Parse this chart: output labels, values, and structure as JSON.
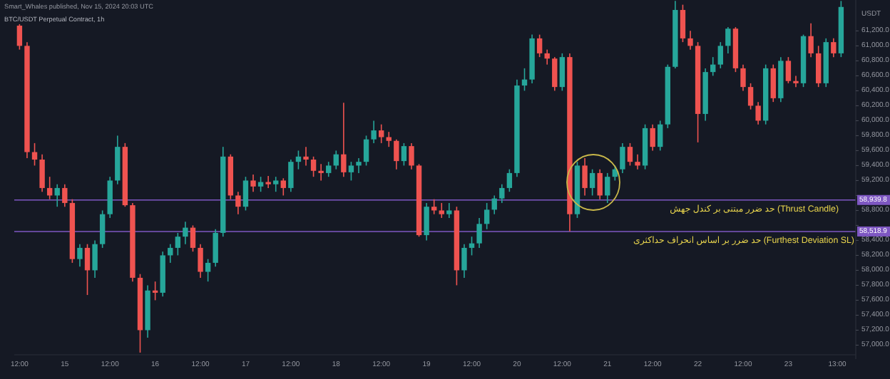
{
  "chart_data": {
    "type": "candlestick",
    "title": "BTC/USDT Perpetual Contract, 1h",
    "subtitle": "Smart_Whales published, Nov 15, 2024 20:03 UTC",
    "ylabel": "USDT",
    "x": [
      "2024-08-14T12:00",
      "2024-08-14T14:00",
      "2024-08-14T16:00",
      "2024-08-14T18:00",
      "2024-08-14T20:00",
      "2024-08-14T22:00",
      "2024-08-15T00:00",
      "2024-08-15T02:00",
      "2024-08-15T04:00",
      "2024-08-15T06:00",
      "2024-08-15T08:00",
      "2024-08-15T10:00",
      "2024-08-15T12:00",
      "2024-08-15T14:00",
      "2024-08-15T16:00",
      "2024-08-15T18:00",
      "2024-08-15T20:00",
      "2024-08-15T22:00",
      "2024-08-16T00:00",
      "2024-08-16T02:00",
      "2024-08-16T04:00",
      "2024-08-16T06:00",
      "2024-08-16T08:00",
      "2024-08-16T10:00",
      "2024-08-16T12:00",
      "2024-08-16T14:00",
      "2024-08-16T16:00",
      "2024-08-16T18:00",
      "2024-08-16T20:00",
      "2024-08-16T22:00",
      "2024-08-17T00:00",
      "2024-08-17T02:00",
      "2024-08-17T04:00",
      "2024-08-17T06:00",
      "2024-08-17T08:00",
      "2024-08-17T10:00",
      "2024-08-17T12:00",
      "2024-08-17T14:00",
      "2024-08-17T16:00",
      "2024-08-17T18:00",
      "2024-08-17T20:00",
      "2024-08-17T22:00",
      "2024-08-18T00:00",
      "2024-08-18T02:00",
      "2024-08-18T04:00",
      "2024-08-18T06:00",
      "2024-08-18T08:00",
      "2024-08-18T10:00",
      "2024-08-18T12:00",
      "2024-08-18T14:00",
      "2024-08-18T16:00",
      "2024-08-18T18:00",
      "2024-08-18T20:00",
      "2024-08-18T22:00",
      "2024-08-19T00:00",
      "2024-08-19T02:00",
      "2024-08-19T04:00",
      "2024-08-19T06:00",
      "2024-08-19T08:00",
      "2024-08-19T10:00",
      "2024-08-19T12:00",
      "2024-08-19T14:00",
      "2024-08-19T16:00",
      "2024-08-19T18:00",
      "2024-08-19T20:00",
      "2024-08-19T22:00",
      "2024-08-20T00:00",
      "2024-08-20T02:00",
      "2024-08-20T04:00",
      "2024-08-20T06:00",
      "2024-08-20T08:00",
      "2024-08-20T10:00",
      "2024-08-20T12:00",
      "2024-08-20T14:00",
      "2024-08-20T16:00",
      "2024-08-20T18:00",
      "2024-08-20T20:00",
      "2024-08-20T22:00",
      "2024-08-21T00:00",
      "2024-08-21T02:00",
      "2024-08-21T04:00",
      "2024-08-21T06:00",
      "2024-08-21T08:00",
      "2024-08-21T10:00",
      "2024-08-21T12:00",
      "2024-08-21T14:00",
      "2024-08-21T16:00",
      "2024-08-21T18:00",
      "2024-08-21T20:00",
      "2024-08-21T22:00",
      "2024-08-22T00:00",
      "2024-08-22T02:00",
      "2024-08-22T04:00",
      "2024-08-22T06:00",
      "2024-08-22T08:00",
      "2024-08-22T10:00",
      "2024-08-22T12:00",
      "2024-08-22T14:00",
      "2024-08-22T16:00",
      "2024-08-22T18:00",
      "2024-08-22T20:00",
      "2024-08-22T22:00",
      "2024-08-23T00:00",
      "2024-08-23T02:00",
      "2024-08-23T04:00",
      "2024-08-23T06:00",
      "2024-08-23T08:00",
      "2024-08-23T10:00",
      "2024-08-23T12:00",
      "2024-08-23T14:00"
    ],
    "ohlc": [
      [
        61270,
        61290,
        60950,
        61000
      ],
      [
        61000,
        61050,
        59500,
        59580
      ],
      [
        59580,
        59700,
        59400,
        59480
      ],
      [
        59480,
        59550,
        59050,
        59100
      ],
      [
        59100,
        59250,
        58950,
        59000
      ],
      [
        59000,
        59150,
        58850,
        59100
      ],
      [
        59100,
        59150,
        58850,
        58900
      ],
      [
        58900,
        58950,
        58100,
        58150
      ],
      [
        58150,
        58350,
        58050,
        58300
      ],
      [
        58300,
        58350,
        57670,
        58000
      ],
      [
        58000,
        58400,
        57900,
        58350
      ],
      [
        58350,
        58800,
        58300,
        58750
      ],
      [
        58750,
        59250,
        58700,
        59200
      ],
      [
        59200,
        59800,
        59150,
        59650
      ],
      [
        59650,
        59700,
        58850,
        58870
      ],
      [
        58870,
        58900,
        57850,
        57900
      ],
      [
        57900,
        57950,
        56900,
        57200
      ],
      [
        57200,
        57800,
        57100,
        57730
      ],
      [
        57730,
        57850,
        57600,
        57700
      ],
      [
        57700,
        58250,
        57650,
        58200
      ],
      [
        58200,
        58350,
        58100,
        58300
      ],
      [
        58300,
        58500,
        58200,
        58450
      ],
      [
        58450,
        58650,
        58350,
        58570
      ],
      [
        58570,
        58600,
        58250,
        58300
      ],
      [
        58300,
        58350,
        57900,
        57980
      ],
      [
        57980,
        58150,
        57850,
        58100
      ],
      [
        58100,
        58550,
        58050,
        58500
      ],
      [
        58500,
        59650,
        58450,
        59520
      ],
      [
        59520,
        59550,
        58950,
        59000
      ],
      [
        59000,
        59050,
        58750,
        58850
      ],
      [
        58850,
        59250,
        58800,
        59200
      ],
      [
        59200,
        59280,
        59050,
        59120
      ],
      [
        59120,
        59250,
        59050,
        59180
      ],
      [
        59180,
        59260,
        59100,
        59150
      ],
      [
        59150,
        59250,
        59050,
        59200
      ],
      [
        59200,
        59230,
        59000,
        59100
      ],
      [
        59100,
        59480,
        59050,
        59450
      ],
      [
        59450,
        59600,
        59350,
        59520
      ],
      [
        59520,
        59650,
        59400,
        59480
      ],
      [
        59480,
        59520,
        59250,
        59330
      ],
      [
        59330,
        59420,
        59200,
        59300
      ],
      [
        59300,
        59450,
        59250,
        59400
      ],
      [
        59400,
        59600,
        59350,
        59550
      ],
      [
        59550,
        60240,
        59250,
        59310
      ],
      [
        59310,
        59450,
        59200,
        59400
      ],
      [
        59400,
        59500,
        59300,
        59450
      ],
      [
        59450,
        59800,
        59400,
        59750
      ],
      [
        59750,
        60000,
        59700,
        59870
      ],
      [
        59870,
        59950,
        59700,
        59780
      ],
      [
        59780,
        59850,
        59650,
        59730
      ],
      [
        59730,
        59750,
        59350,
        59460
      ],
      [
        59460,
        59700,
        59400,
        59660
      ],
      [
        59660,
        59700,
        59350,
        59400
      ],
      [
        59400,
        59420,
        58450,
        58470
      ],
      [
        58470,
        58900,
        58400,
        58850
      ],
      [
        58850,
        58950,
        58750,
        58800
      ],
      [
        58800,
        58900,
        58700,
        58750
      ],
      [
        58750,
        58900,
        58700,
        58800
      ],
      [
        58800,
        58850,
        57800,
        58000
      ],
      [
        58000,
        58350,
        57900,
        58300
      ],
      [
        58300,
        58450,
        58200,
        58360
      ],
      [
        58360,
        58700,
        58300,
        58620
      ],
      [
        58620,
        58900,
        58550,
        58810
      ],
      [
        58810,
        59000,
        58750,
        58960
      ],
      [
        58960,
        59150,
        58900,
        59100
      ],
      [
        59100,
        59350,
        59050,
        59300
      ],
      [
        59300,
        60550,
        59250,
        60470
      ],
      [
        60470,
        60700,
        60400,
        60550
      ],
      [
        60550,
        61150,
        60500,
        61100
      ],
      [
        61100,
        61150,
        60850,
        60900
      ],
      [
        60900,
        60950,
        60750,
        60830
      ],
      [
        60830,
        60850,
        60400,
        60450
      ],
      [
        60450,
        60900,
        60400,
        60850
      ],
      [
        60850,
        60900,
        58520,
        58750
      ],
      [
        58750,
        59450,
        58700,
        59400
      ],
      [
        59400,
        59500,
        59000,
        59100
      ],
      [
        59100,
        59350,
        59000,
        59300
      ],
      [
        59300,
        59350,
        58950,
        59000
      ],
      [
        59000,
        59300,
        58900,
        59250
      ],
      [
        59250,
        59400,
        59200,
        59350
      ],
      [
        59350,
        59700,
        59300,
        59650
      ],
      [
        59650,
        59700,
        59400,
        59450
      ],
      [
        59450,
        59550,
        59350,
        59400
      ],
      [
        59400,
        59950,
        59350,
        59900
      ],
      [
        59900,
        59950,
        59600,
        59650
      ],
      [
        59650,
        60000,
        59600,
        59950
      ],
      [
        59950,
        60750,
        59900,
        60720
      ],
      [
        60720,
        61600,
        60700,
        61480
      ],
      [
        61480,
        61550,
        61050,
        61100
      ],
      [
        61100,
        61200,
        60950,
        61000
      ],
      [
        61000,
        61050,
        59710,
        60090
      ],
      [
        60090,
        60700,
        60000,
        60650
      ],
      [
        60650,
        60850,
        60600,
        60750
      ],
      [
        60750,
        61050,
        60700,
        61000
      ],
      [
        61000,
        61250,
        60900,
        61230
      ],
      [
        61230,
        61250,
        60650,
        60700
      ],
      [
        60700,
        60750,
        60400,
        60450
      ],
      [
        60450,
        60500,
        60150,
        60200
      ],
      [
        60200,
        60250,
        59950,
        60000
      ],
      [
        60000,
        60750,
        59950,
        60700
      ],
      [
        60700,
        60750,
        60250,
        60300
      ],
      [
        60300,
        60850,
        60250,
        60800
      ],
      [
        60800,
        60850,
        60500,
        60530
      ],
      [
        60530,
        60600,
        60450,
        60500
      ],
      [
        60500,
        61150,
        60450,
        61130
      ],
      [
        61130,
        61300,
        60850,
        60900
      ],
      [
        60900,
        61000,
        60450,
        60500
      ],
      [
        60500,
        61100,
        60450,
        61050
      ],
      [
        61050,
        61100,
        60850,
        60900
      ],
      [
        60900,
        61600,
        60850,
        61520
      ]
    ],
    "colors": [
      "#ef5350",
      "#ef5350",
      "#ef5350",
      "#ef5350",
      "#ef5350",
      "#26a69a",
      "#ef5350",
      "#ef5350",
      "#26a69a",
      "#ef5350",
      "#26a69a",
      "#26a69a",
      "#26a69a",
      "#26a69a",
      "#ef5350",
      "#ef5350",
      "#ef5350",
      "#26a69a",
      "#ef5350",
      "#26a69a",
      "#26a69a",
      "#26a69a",
      "#26a69a",
      "#ef5350",
      "#ef5350",
      "#26a69a",
      "#26a69a",
      "#26a69a",
      "#ef5350",
      "#ef5350",
      "#26a69a",
      "#ef5350",
      "#26a69a",
      "#ef5350",
      "#26a69a",
      "#ef5350",
      "#26a69a",
      "#26a69a",
      "#ef5350",
      "#ef5350",
      "#ef5350",
      "#26a69a",
      "#26a69a",
      "#ef5350",
      "#26a69a",
      "#26a69a",
      "#26a69a",
      "#26a69a",
      "#ef5350",
      "#ef5350",
      "#ef5350",
      "#26a69a",
      "#ef5350",
      "#ef5350",
      "#26a69a",
      "#ef5350",
      "#ef5350",
      "#26a69a",
      "#ef5350",
      "#26a69a",
      "#26a69a",
      "#26a69a",
      "#26a69a",
      "#26a69a",
      "#26a69a",
      "#26a69a",
      "#26a69a",
      "#26a69a",
      "#26a69a",
      "#ef5350",
      "#ef5350",
      "#ef5350",
      "#26a69a",
      "#ef5350",
      "#26a69a",
      "#ef5350",
      "#26a69a",
      "#ef5350",
      "#26a69a",
      "#26a69a",
      "#26a69a",
      "#ef5350",
      "#ef5350",
      "#26a69a",
      "#ef5350",
      "#26a69a",
      "#26a69a",
      "#26a69a",
      "#ef5350",
      "#ef5350",
      "#ef5350",
      "#26a69a",
      "#26a69a",
      "#26a69a",
      "#26a69a",
      "#ef5350",
      "#ef5350",
      "#ef5350",
      "#ef5350",
      "#26a69a",
      "#ef5350",
      "#26a69a",
      "#ef5350",
      "#ef5350",
      "#26a69a",
      "#ef5350",
      "#ef5350",
      "#26a69a",
      "#ef5350",
      "#26a69a"
    ],
    "xlim": [
      "2024-08-14T10:36",
      "2024-08-23T17:54"
    ],
    "ylim": [
      56890,
      61613
    ],
    "xticks": [
      {
        "value": "2024-08-14T12:00",
        "label": "12:00"
      },
      {
        "value": "2024-08-15",
        "label": "15"
      },
      {
        "value": "2024-08-15T12:00",
        "label": "12:00"
      },
      {
        "value": "2024-08-16",
        "label": "16"
      },
      {
        "value": "2024-08-16T12:00",
        "label": "12:00"
      },
      {
        "value": "2024-08-17",
        "label": "17"
      },
      {
        "value": "2024-08-17T12:00",
        "label": "12:00"
      },
      {
        "value": "2024-08-18",
        "label": "18"
      },
      {
        "value": "2024-08-18T12:00",
        "label": "12:00"
      },
      {
        "value": "2024-08-19",
        "label": "19"
      },
      {
        "value": "2024-08-19T12:00",
        "label": "12:00"
      },
      {
        "value": "2024-08-20",
        "label": "20"
      },
      {
        "value": "2024-08-20T12:00",
        "label": "12:00"
      },
      {
        "value": "2024-08-21",
        "label": "21"
      },
      {
        "value": "2024-08-21T12:00",
        "label": "12:00"
      },
      {
        "value": "2024-08-22",
        "label": "22"
      },
      {
        "value": "2024-08-22T12:00",
        "label": "12:00"
      },
      {
        "value": "2024-08-23",
        "label": "23"
      },
      {
        "value": "2024-08-23T13:00",
        "label": "13:00"
      }
    ],
    "yticks": [
      {
        "value": 57000,
        "label": "57,000.0"
      },
      {
        "value": 57200,
        "label": "57,200.0"
      },
      {
        "value": 57400,
        "label": "57,400.0"
      },
      {
        "value": 57600,
        "label": "57,600.0"
      },
      {
        "value": 57800,
        "label": "57,800.0"
      },
      {
        "value": 58000,
        "label": "58,000.0"
      },
      {
        "value": 58200,
        "label": "58,200.0"
      },
      {
        "value": 58400,
        "label": "58,400.0"
      },
      {
        "value": 58600,
        "label": null
      },
      {
        "value": 58800,
        "label": "58,800.0"
      },
      {
        "value": 59000,
        "label": null
      },
      {
        "value": 59200,
        "label": "59,200.0"
      },
      {
        "value": 59400,
        "label": "59,400.0"
      },
      {
        "value": 59600,
        "label": "59,600.0"
      },
      {
        "value": 59800,
        "label": "59,800.0"
      },
      {
        "value": 60000,
        "label": "60,000.0"
      },
      {
        "value": 60200,
        "label": "60,200.0"
      },
      {
        "value": 60400,
        "label": "60,400.0"
      },
      {
        "value": 60600,
        "label": "60,600.0"
      },
      {
        "value": 60800,
        "label": "60,800.0"
      },
      {
        "value": 61000,
        "label": "61,000.0"
      },
      {
        "value": 61200,
        "label": "61,200.0"
      }
    ],
    "ref_lines": [
      {
        "axis": "y",
        "value": 58939.8,
        "label": "58,939.8",
        "color": "#7e57c2"
      },
      {
        "axis": "y",
        "value": 58518.9,
        "label": "58,518.9",
        "color": "#7e57c2"
      }
    ],
    "annotations": [
      "حد ضرر مبتنی بر کندل جهش (Thrust Candle)",
      "حد ضرر بر اساس انحراف حداکثری (Furthest Deviation SL)"
    ]
  }
}
